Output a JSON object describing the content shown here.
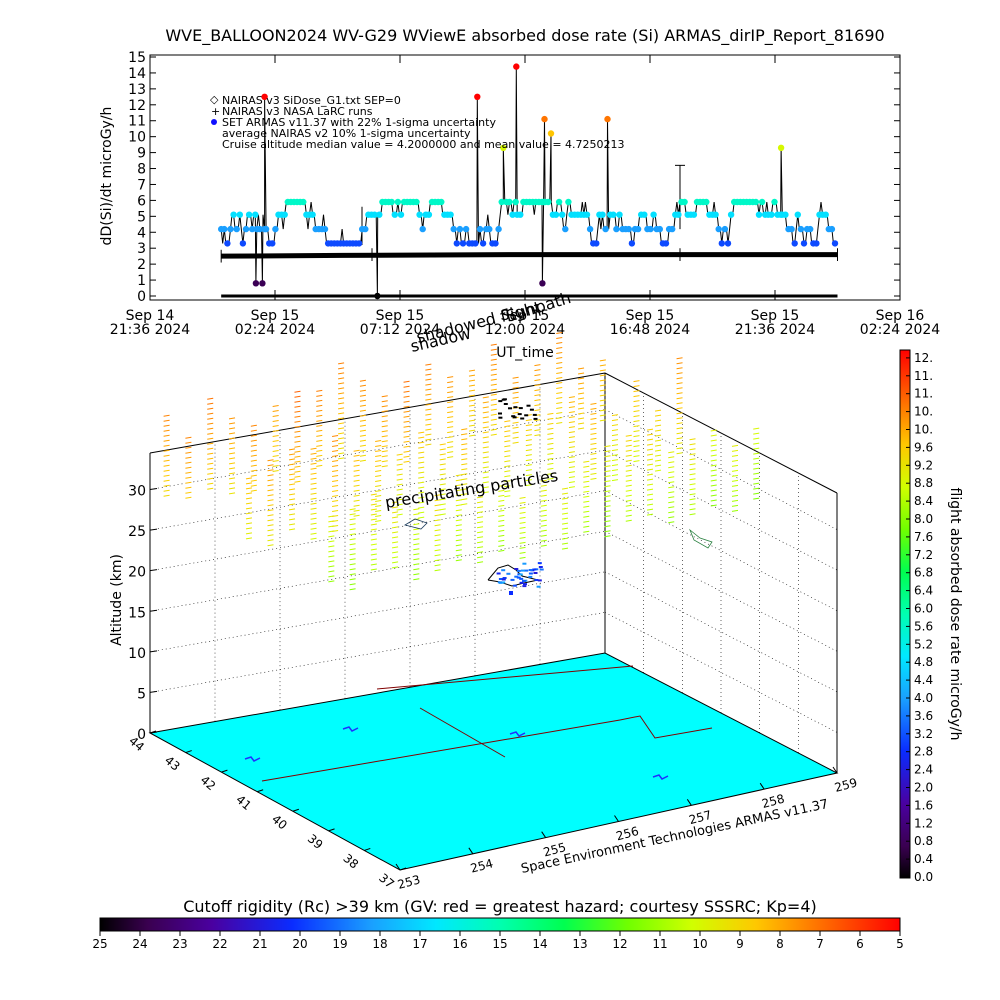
{
  "title": "WVE_BALLOON2024 WV-G29 WViewE absorbed dose rate (Si) ARMAS_dirIP_Report_81690",
  "timeseries": {
    "ylabel": "dD(Si)/dt microGy/h",
    "xlabel": "UT_time",
    "yticks": [
      "0",
      "1",
      "2",
      "3",
      "4",
      "5",
      "6",
      "7",
      "8",
      "9",
      "10",
      "11",
      "12",
      "13",
      "14",
      "15"
    ],
    "xticks": [
      {
        "line1": "Sep 14",
        "line2": "21:36 2024"
      },
      {
        "line1": "Sep 15",
        "line2": "02:24 2024"
      },
      {
        "line1": "Sep 15",
        "line2": "07:12 2024"
      },
      {
        "line1": "Sep 15",
        "line2": "12:00 2024"
      },
      {
        "line1": "Sep 15",
        "line2": "16:48 2024"
      },
      {
        "line1": "Sep 15",
        "line2": "21:36 2024"
      },
      {
        "line1": "Sep 16",
        "line2": "02:24 2024"
      }
    ],
    "legend": [
      "NAIRAS v3 SiDose_G1.txt SEP=0",
      "NAIRAS v3 NASA LaRC runs",
      "SET ARMAS v11.37 with 22% 1-sigma uncertainty",
      "average NAIRAS v2 10% 1-sigma uncertainty",
      "Cruise altitude median value = 4.2000000 and mean value = 4.7250213"
    ],
    "overlay_labels": [
      "Sunpath",
      "shadowed flight",
      "shadow"
    ]
  },
  "chart_data": [
    {
      "type": "scatter",
      "title": "WVE_BALLOON2024 WV-G29 WViewE absorbed dose rate (Si) ARMAS_dirIP_Report_81690",
      "xlabel": "UT_time",
      "ylabel": "dD(Si)/dt microGy/h",
      "xlim": [
        "2024-09-14 21:36",
        "2024-09-16 02:24"
      ],
      "ylim": [
        0,
        15
      ],
      "series": [
        {
          "name": "SET ARMAS v11.37 with 22% 1-sigma uncertainty",
          "pattern": {
            "start": "2024-09-15 00:20",
            "end": "2024-09-16 00:00",
            "levels": [
              3.3,
              4.2,
              5.1,
              5.9
            ],
            "spikes": [
              {
                "t": "2024-09-15 02:00",
                "y": 12.5
              },
              {
                "t": "2024-09-15 10:10",
                "y": 12.5
              },
              {
                "t": "2024-09-15 11:40",
                "y": 14.4
              },
              {
                "t": "2024-09-15 12:45",
                "y": 11.1
              },
              {
                "t": "2024-09-15 15:10",
                "y": 11.1
              },
              {
                "t": "2024-09-15 21:50",
                "y": 9.3
              },
              {
                "t": "2024-09-15 11:10",
                "y": 9.3
              },
              {
                "t": "2024-09-15 13:00",
                "y": 10.2
              }
            ],
            "dips": [
              {
                "t": "2024-09-15 01:40",
                "y": 0.8
              },
              {
                "t": "2024-09-15 01:55",
                "y": 0.8
              },
              {
                "t": "2024-09-15 06:20",
                "y": 0.0
              },
              {
                "t": "2024-09-15 12:40",
                "y": 0.8
              }
            ]
          }
        },
        {
          "name": "NAIRAS v3 SiDose_G1.txt SEP=0",
          "values": [
            {
              "t": "2024-09-15 00:20",
              "y": 0.0
            },
            {
              "t": "2024-09-16 00:00",
              "y": 0.0
            }
          ]
        },
        {
          "name": "NAIRAS v3 NASA LaRC runs",
          "values": [
            {
              "t": "2024-09-15 00:20",
              "y": 2.5
            },
            {
              "t": "2024-09-15 05:00",
              "y": 2.55
            },
            {
              "t": "2024-09-15 12:00",
              "y": 2.6
            },
            {
              "t": "2024-09-16 00:00",
              "y": 2.6
            }
          ]
        }
      ]
    },
    {
      "type": "scatter",
      "title": "",
      "zlabel": "Altitude (km)",
      "zticks": [
        "0",
        "5",
        "10",
        "15",
        "20",
        "25",
        "30"
      ],
      "lat_ticks": [
        "44",
        "43",
        "42",
        "41",
        "40",
        "39",
        "38",
        "37"
      ],
      "lon_ticks": [
        "253",
        "254",
        "255",
        "256",
        "257",
        "258",
        "259"
      ],
      "annotation": "precipitating particles",
      "credit": "Space Environment Technologies ARMAS v11.37",
      "colorbar": {
        "label": "flight absorbed dose rate microGy/h",
        "ticks": [
          "0.0",
          "0.4",
          "0.8",
          "1.2",
          "1.6",
          "2.0",
          "2.4",
          "2.8",
          "3.2",
          "3.6",
          "4.0",
          "4.4",
          "4.8",
          "5.2",
          "5.6",
          "6.0",
          "6.4",
          "6.8",
          "7.2",
          "7.6",
          "8.0",
          "8.4",
          "8.8",
          "9.2",
          "9.6",
          "10.",
          "10.",
          "11.",
          "11.",
          "12."
        ],
        "range": [
          0,
          12.4
        ]
      },
      "flight_track": {
        "lat_range": [
          37,
          44
        ],
        "lon_range": [
          253,
          259
        ],
        "alt_km_range": [
          19,
          22
        ],
        "dose_range": [
          2.0,
          4.4
        ]
      }
    },
    {
      "type": "heatmap",
      "title": "Cutoff rigidity (Rc) >39 km (GV: red = greatest hazard; courtesy SSSRC; Kp=4)",
      "colorbar": {
        "ticks": [
          "25",
          "24",
          "23",
          "22",
          "21",
          "20",
          "19",
          "18",
          "17",
          "16",
          "15",
          "14",
          "13",
          "12",
          "11",
          "10",
          "9",
          "8",
          "7",
          "6",
          "5"
        ],
        "range": [
          25,
          5
        ]
      }
    }
  ],
  "colors": {
    "armas_dot_default": "#00e5ff",
    "baseline": "#000000",
    "map_floor": "#00ffff"
  }
}
